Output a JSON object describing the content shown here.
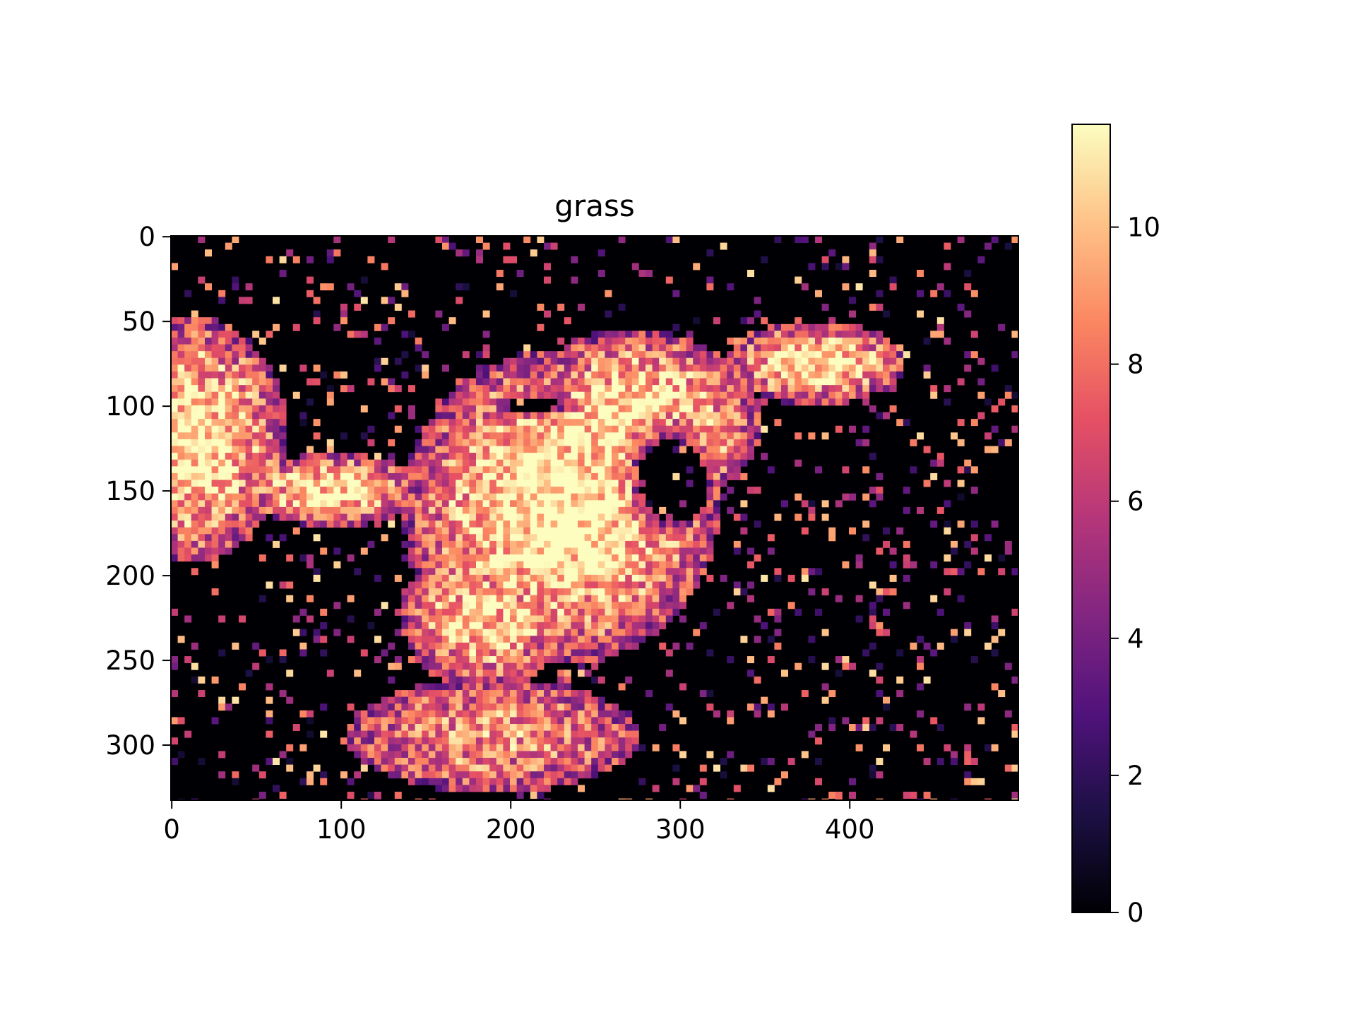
{
  "chart_data": {
    "type": "heatmap",
    "title": "grass",
    "xlabel": "",
    "ylabel": "",
    "xlim": [
      -0.5,
      499.5
    ],
    "ylim": [
      332.5,
      -0.5
    ],
    "x_ticks": [
      0,
      100,
      200,
      300,
      400
    ],
    "y_ticks": [
      0,
      50,
      100,
      150,
      200,
      250,
      300
    ],
    "x_tick_labels": [
      "0",
      "100",
      "200",
      "300",
      "400"
    ],
    "y_tick_labels": [
      "0",
      "50",
      "100",
      "150",
      "200",
      "250",
      "300"
    ],
    "image_size": {
      "width": 500,
      "height": 333
    },
    "colormap": "magma",
    "colormap_stops": [
      "#000004",
      "#1c1044",
      "#4f127b",
      "#812581",
      "#b5367a",
      "#e55064",
      "#fb8761",
      "#fec287",
      "#fcfdbf"
    ],
    "value_range": [
      0,
      11.5
    ],
    "colorbar": {
      "ticks": [
        0,
        2,
        4,
        6,
        8,
        10
      ],
      "tick_labels": [
        "0",
        "2",
        "4",
        "6",
        "8",
        "10"
      ]
    },
    "grid": false,
    "legend": "none"
  }
}
